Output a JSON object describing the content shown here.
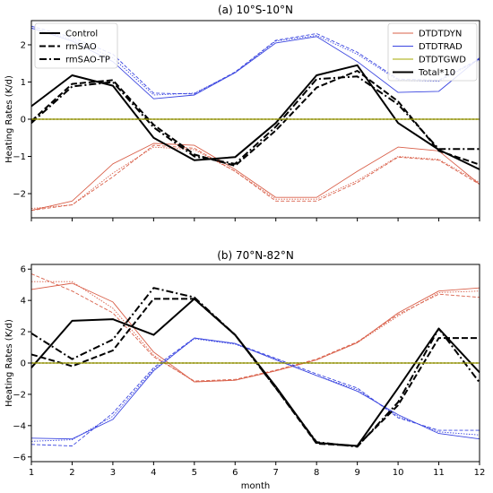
{
  "colors": {
    "dyn": "#d9604a",
    "rad": "#3a45e0",
    "gwd": "#a5a800",
    "total": "#000000",
    "zero": "#8f8f00"
  },
  "legend_left": [
    {
      "label": "Control",
      "style": "solid"
    },
    {
      "label": "rmSAO",
      "style": "dashed"
    },
    {
      "label": "rmSAO-TP",
      "style": "dashdot"
    }
  ],
  "legend_right": [
    {
      "label": "DTDTDYN",
      "color_key": "dyn"
    },
    {
      "label": "DTDTRAD",
      "color_key": "rad"
    },
    {
      "label": "DTDTGWD",
      "color_key": "gwd"
    },
    {
      "label": "Total*10",
      "color_key": "total"
    }
  ],
  "chart_data": [
    {
      "type": "line",
      "title": "(a) 10$^\\circ$S-10$^\\circ$N",
      "title_display": "(a) 10°S-10°N",
      "xlabel": "",
      "ylabel": "Heating Rates (K/d)",
      "x": [
        1,
        2,
        3,
        4,
        5,
        6,
        7,
        8,
        9,
        10,
        11,
        12
      ],
      "xlim": [
        1,
        12
      ],
      "ylim": [
        -2.65,
        2.65
      ],
      "yticks": [
        -2,
        -1,
        0,
        1,
        2
      ],
      "xtick_labels_shown": false,
      "series": [
        {
          "group": "DTDTDYN",
          "experiment": "Control",
          "values": [
            -2.45,
            -2.2,
            -1.2,
            -0.65,
            -0.7,
            -1.35,
            -2.1,
            -2.1,
            -1.4,
            -0.75,
            -0.85,
            -1.75
          ]
        },
        {
          "group": "DTDTDYN",
          "experiment": "rmSAO",
          "values": [
            -2.45,
            -2.3,
            -1.55,
            -0.7,
            -0.78,
            -1.4,
            -2.2,
            -2.2,
            -1.7,
            -1.02,
            -1.1,
            -1.75
          ]
        },
        {
          "group": "DTDTDYN",
          "experiment": "rmSAO-TP",
          "values": [
            -2.4,
            -2.3,
            -1.45,
            -0.75,
            -0.82,
            -1.4,
            -2.15,
            -2.15,
            -1.65,
            -1.0,
            -1.08,
            -1.7
          ]
        },
        {
          "group": "DTDTRAD",
          "experiment": "Control",
          "values": [
            2.45,
            2.1,
            1.55,
            0.55,
            0.65,
            1.25,
            2.05,
            2.22,
            1.55,
            0.72,
            0.75,
            1.65
          ]
        },
        {
          "group": "DTDTRAD",
          "experiment": "rmSAO",
          "values": [
            2.5,
            2.2,
            1.75,
            0.7,
            0.68,
            1.27,
            2.12,
            2.3,
            1.8,
            1.08,
            1.05,
            1.62
          ]
        },
        {
          "group": "DTDTRAD",
          "experiment": "rmSAO-TP",
          "values": [
            2.45,
            2.15,
            1.65,
            0.65,
            0.7,
            1.25,
            2.1,
            2.25,
            1.75,
            1.05,
            1.02,
            1.6
          ]
        },
        {
          "group": "DTDTGWD",
          "experiment": "Control",
          "values": [
            0,
            0,
            0,
            0,
            0,
            0,
            0,
            0,
            0,
            0,
            0,
            0
          ]
        },
        {
          "group": "DTDTGWD",
          "experiment": "rmSAO",
          "values": [
            0,
            0,
            0,
            0,
            0,
            0,
            0,
            0,
            0,
            0,
            0,
            0
          ]
        },
        {
          "group": "DTDTGWD",
          "experiment": "rmSAO-TP",
          "values": [
            0,
            0,
            0,
            0,
            0,
            0,
            0,
            0,
            0,
            0,
            0,
            0
          ]
        },
        {
          "group": "Total*10",
          "experiment": "Control",
          "values": [
            0.35,
            1.18,
            0.9,
            -0.5,
            -1.1,
            -1.02,
            -0.1,
            1.18,
            1.45,
            -0.1,
            -0.82,
            -1.35
          ]
        },
        {
          "group": "Total*10",
          "experiment": "rmSAO",
          "values": [
            -0.05,
            0.95,
            1.05,
            -0.15,
            -0.95,
            -1.25,
            -0.3,
            0.85,
            1.3,
            0.48,
            -0.85,
            -1.22
          ]
        },
        {
          "group": "Total*10",
          "experiment": "rmSAO-TP",
          "values": [
            -0.1,
            0.88,
            1.0,
            -0.22,
            -1.0,
            -1.2,
            -0.2,
            1.08,
            1.15,
            0.4,
            -0.8,
            -0.8
          ]
        }
      ]
    },
    {
      "type": "line",
      "title": "(b) 70$^\\circ$N-82$^\\circ$N",
      "title_display": "(b) 70°N-82°N",
      "xlabel": "month",
      "ylabel": "Heating Rates (K/d)",
      "x": [
        1,
        2,
        3,
        4,
        5,
        6,
        7,
        8,
        9,
        10,
        11,
        12
      ],
      "xlim": [
        1,
        12
      ],
      "ylim": [
        -6.3,
        6.3
      ],
      "yticks": [
        -6,
        -4,
        -2,
        0,
        2,
        4,
        6
      ],
      "xtick_labels_shown": true,
      "series": [
        {
          "group": "DTDTDYN",
          "experiment": "Control",
          "values": [
            4.7,
            5.1,
            3.9,
            0.7,
            -1.2,
            -1.1,
            -0.5,
            0.2,
            1.3,
            3.2,
            4.6,
            4.8
          ]
        },
        {
          "group": "DTDTDYN",
          "experiment": "rmSAO",
          "values": [
            5.7,
            4.6,
            3.2,
            0.4,
            -1.15,
            -1.05,
            -0.45,
            0.25,
            1.35,
            3.1,
            4.4,
            4.2
          ]
        },
        {
          "group": "DTDTDYN",
          "experiment": "rmSAO-TP",
          "values": [
            5.2,
            5.2,
            3.5,
            0.5,
            -1.2,
            -1.1,
            -0.5,
            0.2,
            1.3,
            3.0,
            4.5,
            4.6
          ]
        },
        {
          "group": "DTDTRAD",
          "experiment": "Control",
          "values": [
            -4.8,
            -4.85,
            -3.6,
            -0.5,
            1.6,
            1.25,
            0.2,
            -0.8,
            -1.8,
            -3.3,
            -4.5,
            -4.85
          ]
        },
        {
          "group": "DTDTRAD",
          "experiment": "rmSAO",
          "values": [
            -5.2,
            -5.3,
            -3.2,
            -0.3,
            1.6,
            1.25,
            0.3,
            -0.7,
            -1.6,
            -3.5,
            -4.3,
            -4.3
          ]
        },
        {
          "group": "DTDTRAD",
          "experiment": "rmSAO-TP",
          "values": [
            -5.0,
            -4.9,
            -3.4,
            -0.4,
            1.55,
            1.2,
            0.25,
            -0.8,
            -1.7,
            -3.4,
            -4.4,
            -4.6
          ]
        },
        {
          "group": "DTDTGWD",
          "experiment": "Control",
          "values": [
            0,
            0,
            0,
            0,
            0,
            0,
            0,
            0,
            0,
            0,
            0,
            0
          ]
        },
        {
          "group": "DTDTGWD",
          "experiment": "rmSAO",
          "values": [
            0,
            0,
            0,
            0,
            0,
            0,
            0,
            0,
            0,
            0,
            0,
            0
          ]
        },
        {
          "group": "DTDTGWD",
          "experiment": "rmSAO-TP",
          "values": [
            0,
            0,
            0,
            0,
            0,
            0,
            0,
            0,
            0,
            0,
            0,
            0
          ]
        },
        {
          "group": "Total*10",
          "experiment": "Control",
          "values": [
            -0.3,
            2.7,
            2.8,
            1.8,
            4.1,
            1.8,
            -1.5,
            -5.1,
            -5.3,
            -1.6,
            2.2,
            -0.6
          ]
        },
        {
          "group": "Total*10",
          "experiment": "rmSAO",
          "values": [
            0.55,
            -0.2,
            0.8,
            4.1,
            4.1,
            1.8,
            -1.6,
            -5.15,
            -5.3,
            -2.7,
            1.6,
            1.6
          ]
        },
        {
          "group": "Total*10",
          "experiment": "rmSAO-TP",
          "values": [
            1.9,
            0.25,
            1.5,
            4.8,
            4.2,
            1.8,
            -1.6,
            -5.05,
            -5.35,
            -2.5,
            2.2,
            -1.25
          ]
        }
      ]
    }
  ]
}
